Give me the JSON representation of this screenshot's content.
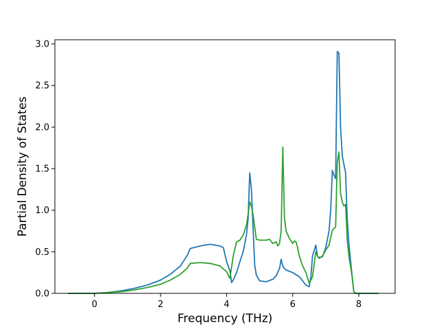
{
  "chart_data": {
    "type": "line",
    "title": "",
    "xlabel": "Frequency (THz)",
    "ylabel": "Partial Density of States",
    "xlim": [
      -1.2,
      9.1
    ],
    "ylim": [
      0.0,
      3.05
    ],
    "xticks": [
      0,
      2,
      4,
      6,
      8
    ],
    "xtick_labels": [
      "0",
      "2",
      "4",
      "6",
      "8"
    ],
    "yticks": [
      0.0,
      0.5,
      1.0,
      1.5,
      2.0,
      2.5,
      3.0
    ],
    "ytick_labels": [
      "0.0",
      "0.5",
      "1.0",
      "1.5",
      "2.0",
      "2.5",
      "3.0"
    ],
    "grid": false,
    "legend": null,
    "series": [
      {
        "color": "#1f77b4",
        "x": [
          -0.8,
          0.0,
          0.4,
          0.8,
          1.2,
          1.6,
          2.0,
          2.3,
          2.6,
          2.8,
          2.9,
          3.2,
          3.5,
          3.8,
          3.9,
          4.0,
          4.1,
          4.15,
          4.2,
          4.3,
          4.4,
          4.5,
          4.6,
          4.65,
          4.7,
          4.75,
          4.8,
          4.85,
          4.9,
          5.0,
          5.2,
          5.4,
          5.5,
          5.6,
          5.65,
          5.7,
          5.75,
          5.8,
          6.0,
          6.2,
          6.3,
          6.4,
          6.5,
          6.55,
          6.6,
          6.7,
          6.75,
          6.8,
          6.9,
          7.0,
          7.1,
          7.15,
          7.2,
          7.25,
          7.3,
          7.35,
          7.4,
          7.45,
          7.5,
          7.6,
          7.65,
          7.7,
          7.8,
          7.85,
          7.9,
          8.0,
          8.6
        ],
        "values": [
          0.0,
          0.0,
          0.01,
          0.03,
          0.06,
          0.1,
          0.16,
          0.23,
          0.33,
          0.45,
          0.54,
          0.57,
          0.59,
          0.57,
          0.55,
          0.38,
          0.27,
          0.13,
          0.16,
          0.25,
          0.38,
          0.5,
          0.7,
          0.9,
          1.45,
          1.25,
          0.8,
          0.34,
          0.22,
          0.15,
          0.14,
          0.17,
          0.21,
          0.3,
          0.41,
          0.33,
          0.3,
          0.28,
          0.25,
          0.2,
          0.15,
          0.1,
          0.08,
          0.2,
          0.45,
          0.58,
          0.45,
          0.43,
          0.44,
          0.55,
          0.75,
          1.0,
          1.48,
          1.42,
          1.38,
          2.91,
          2.89,
          2.0,
          1.65,
          1.45,
          0.9,
          0.6,
          0.2,
          0.02,
          0.0,
          0.0,
          0.0
        ]
      },
      {
        "color": "#2ca02c",
        "x": [
          -0.8,
          0.0,
          0.4,
          0.8,
          1.2,
          1.6,
          2.0,
          2.3,
          2.6,
          2.8,
          2.9,
          3.2,
          3.5,
          3.8,
          4.0,
          4.1,
          4.2,
          4.3,
          4.4,
          4.5,
          4.6,
          4.65,
          4.7,
          4.75,
          4.8,
          4.9,
          5.0,
          5.2,
          5.3,
          5.4,
          5.5,
          5.55,
          5.6,
          5.65,
          5.7,
          5.75,
          5.8,
          5.9,
          6.0,
          6.05,
          6.1,
          6.15,
          6.2,
          6.3,
          6.4,
          6.5,
          6.6,
          6.7,
          6.75,
          6.8,
          6.9,
          7.0,
          7.1,
          7.2,
          7.3,
          7.35,
          7.4,
          7.45,
          7.5,
          7.55,
          7.6,
          7.65,
          7.7,
          7.8,
          7.85,
          7.9,
          8.6
        ],
        "values": [
          0.0,
          0.0,
          0.01,
          0.02,
          0.04,
          0.07,
          0.11,
          0.16,
          0.23,
          0.3,
          0.36,
          0.37,
          0.36,
          0.33,
          0.26,
          0.18,
          0.45,
          0.62,
          0.64,
          0.7,
          0.82,
          0.95,
          1.1,
          1.05,
          0.95,
          0.65,
          0.64,
          0.64,
          0.65,
          0.6,
          0.62,
          0.57,
          0.6,
          0.75,
          1.76,
          0.9,
          0.75,
          0.66,
          0.6,
          0.63,
          0.62,
          0.55,
          0.45,
          0.33,
          0.25,
          0.12,
          0.2,
          0.5,
          0.45,
          0.42,
          0.45,
          0.52,
          0.58,
          0.76,
          0.8,
          1.58,
          1.7,
          1.2,
          1.1,
          1.05,
          1.07,
          0.65,
          0.45,
          0.2,
          0.02,
          0.0,
          0.0
        ]
      }
    ]
  }
}
